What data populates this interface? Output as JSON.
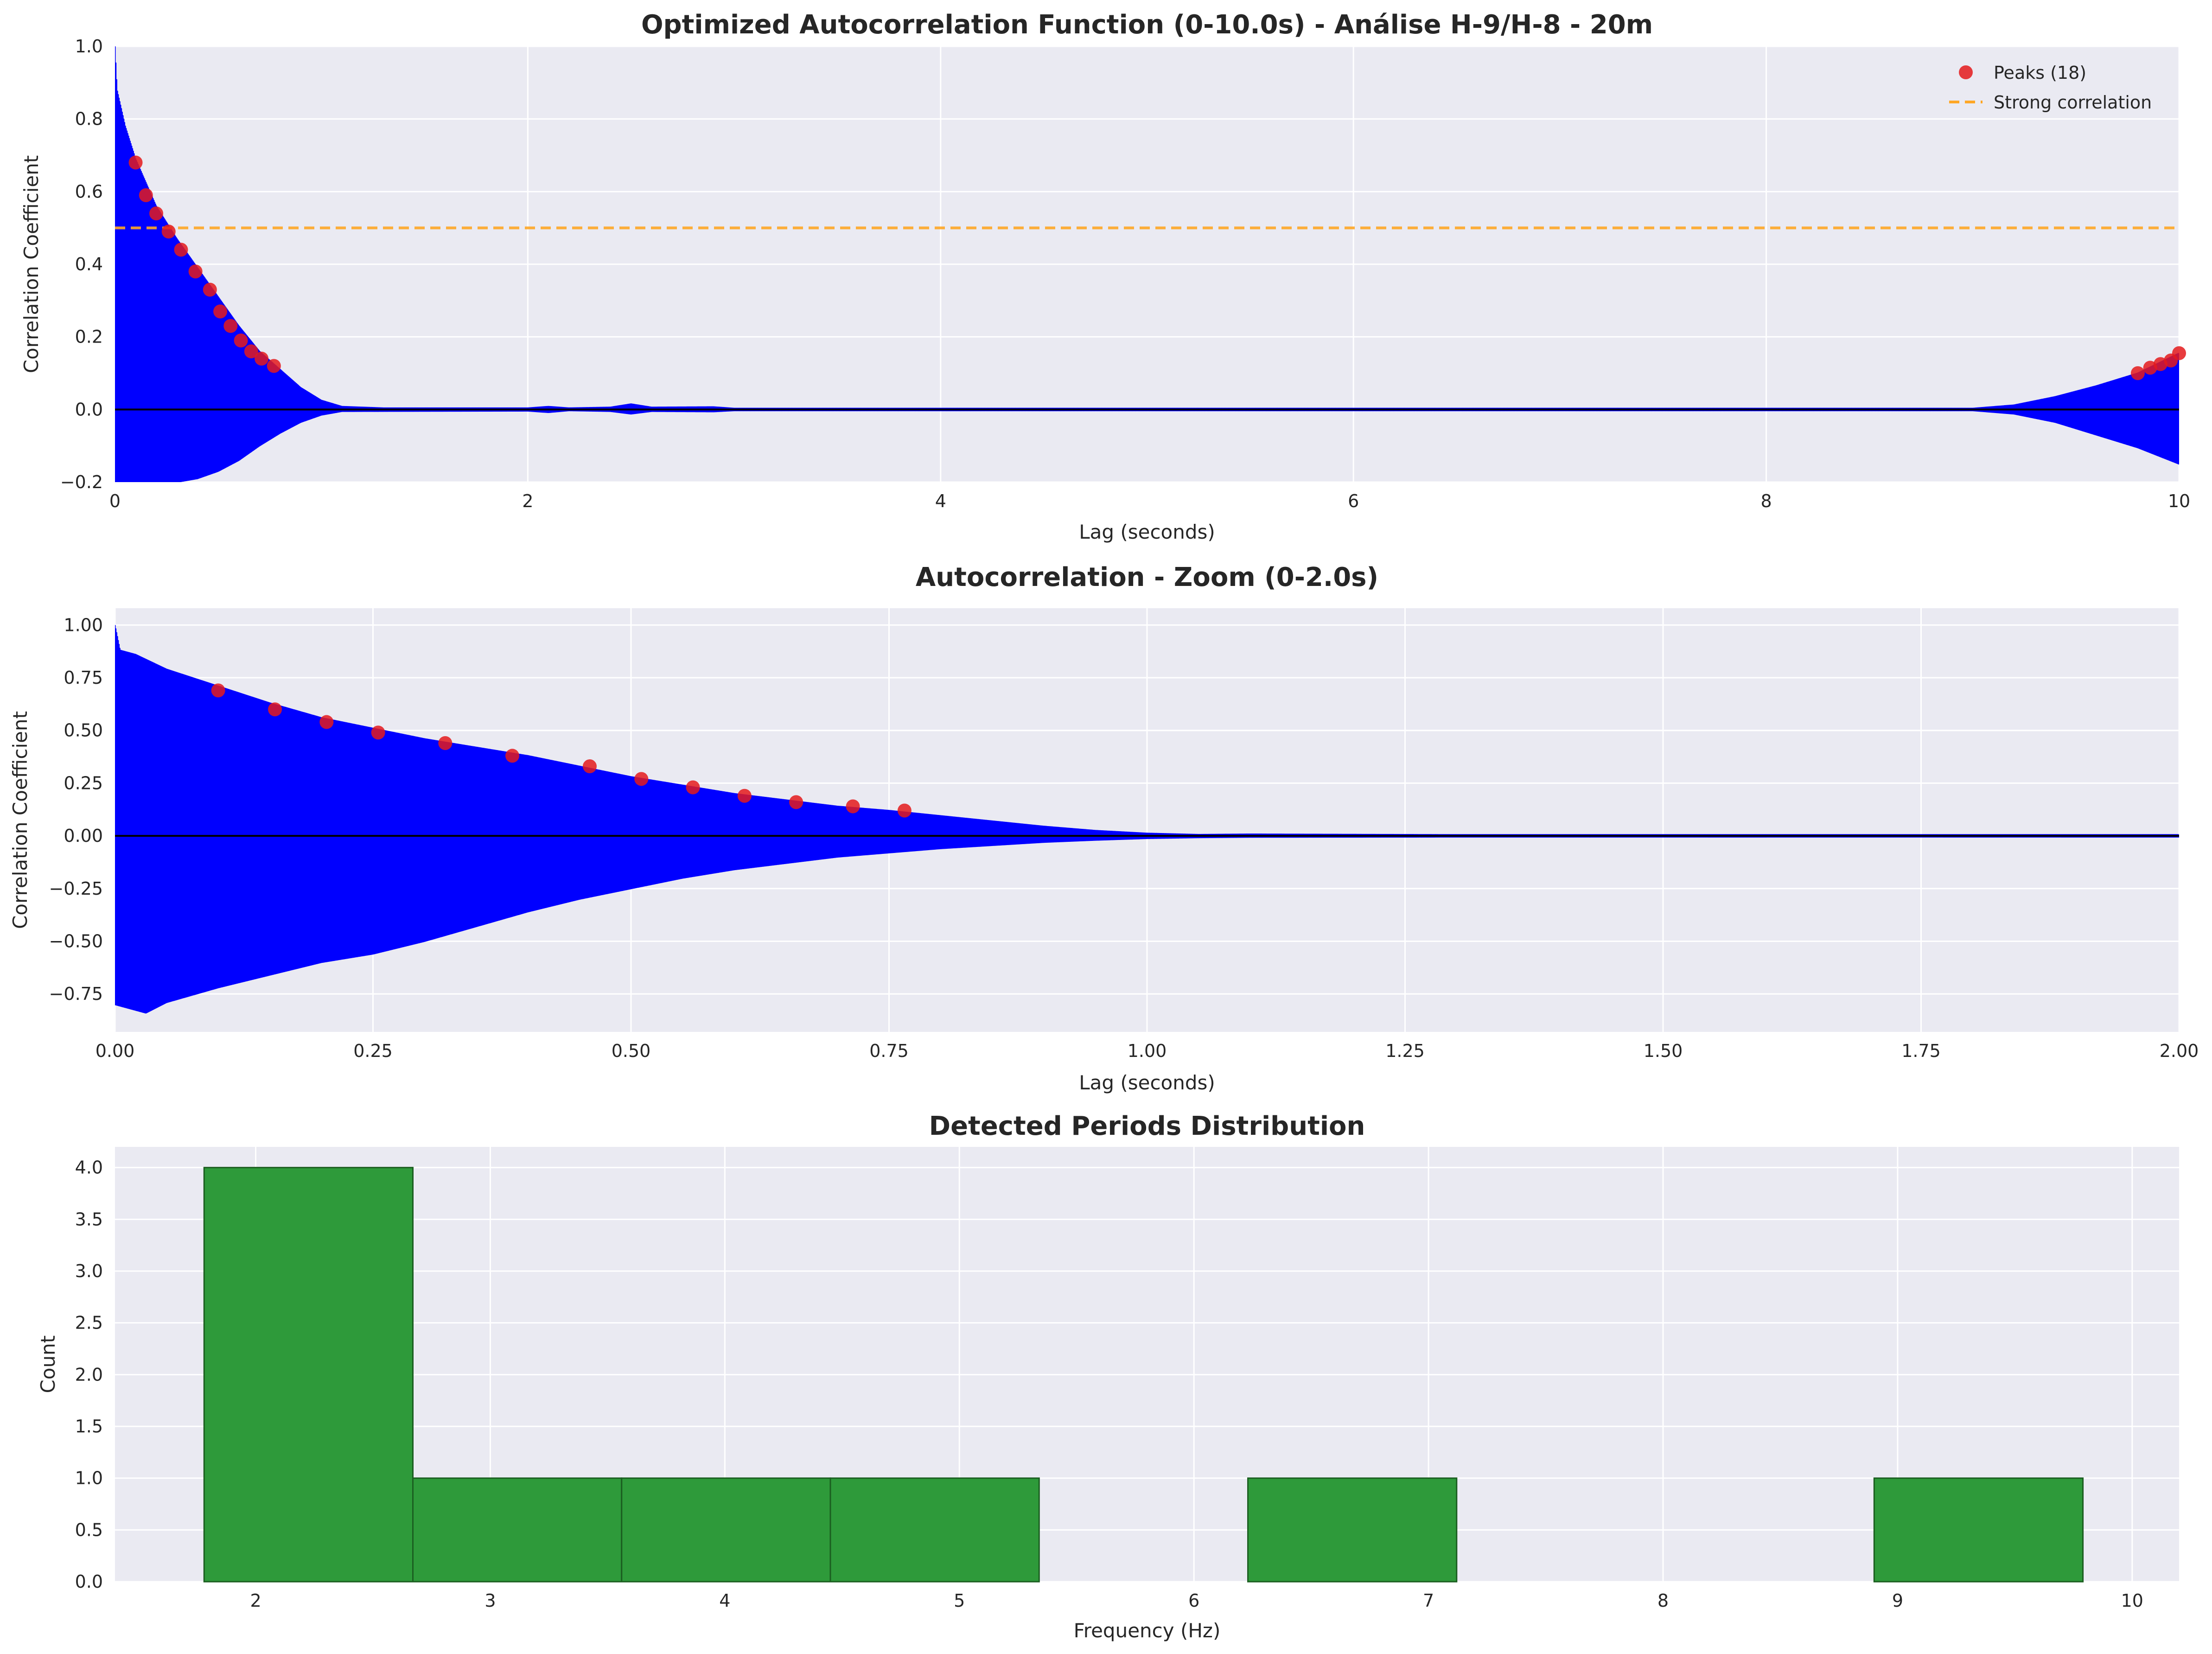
{
  "colors": {
    "background": "#eaeaf2",
    "grid": "#ffffff",
    "signal": "#0000ff",
    "peak": "#e41a1c",
    "threshold": "#ffa726",
    "zero_line": "#000000",
    "bar_fill": "#2e9a3a",
    "bar_edge": "#1b5e20"
  },
  "chart_data": [
    {
      "type": "line",
      "title": "Optimized Autocorrelation Function (0-10.0s) - Análise H-9/H-8 - 20m",
      "xlabel": "Lag (seconds)",
      "ylabel": "Correlation Coefficient",
      "xlim": [
        0,
        10
      ],
      "ylim": [
        -0.2,
        1.0
      ],
      "xticks": [
        0,
        2,
        4,
        6,
        8,
        10
      ],
      "xtick_labels": [
        "0",
        "2",
        "4",
        "6",
        "8",
        "10"
      ],
      "yticks": [
        -0.2,
        0.0,
        0.2,
        0.4,
        0.6,
        0.8,
        1.0
      ],
      "ytick_labels": [
        "−0.2",
        "0.0",
        "0.2",
        "0.4",
        "0.6",
        "0.8",
        "1.0"
      ],
      "grid": true,
      "legend": {
        "placement": "upper-right",
        "entries": [
          {
            "label": "Peaks (18)",
            "kind": "marker"
          },
          {
            "label": "Strong correlation",
            "kind": "dashed-line"
          }
        ]
      },
      "threshold": 0.5,
      "envelope": {
        "upper": [
          [
            0,
            1.0
          ],
          [
            0.01,
            0.88
          ],
          [
            0.05,
            0.78
          ],
          [
            0.1,
            0.69
          ],
          [
            0.2,
            0.56
          ],
          [
            0.3,
            0.47
          ],
          [
            0.4,
            0.39
          ],
          [
            0.5,
            0.31
          ],
          [
            0.6,
            0.23
          ],
          [
            0.7,
            0.16
          ],
          [
            0.8,
            0.11
          ],
          [
            0.9,
            0.06
          ],
          [
            1.0,
            0.025
          ],
          [
            1.1,
            0.008
          ],
          [
            1.3,
            0.004
          ],
          [
            2.0,
            0.004
          ],
          [
            2.1,
            0.008
          ],
          [
            2.2,
            0.004
          ],
          [
            2.4,
            0.006
          ],
          [
            2.5,
            0.015
          ],
          [
            2.6,
            0.006
          ],
          [
            2.9,
            0.007
          ],
          [
            3.0,
            0.003
          ],
          [
            5.0,
            0.003
          ],
          [
            9.0,
            0.003
          ],
          [
            9.2,
            0.012
          ],
          [
            9.4,
            0.035
          ],
          [
            9.6,
            0.065
          ],
          [
            9.8,
            0.1
          ],
          [
            10.0,
            0.155
          ]
        ],
        "lower": [
          [
            0,
            -0.2
          ],
          [
            0.05,
            -0.2
          ],
          [
            0.3,
            -0.2
          ],
          [
            0.4,
            -0.19
          ],
          [
            0.5,
            -0.17
          ],
          [
            0.6,
            -0.14
          ],
          [
            0.7,
            -0.1
          ],
          [
            0.8,
            -0.065
          ],
          [
            0.9,
            -0.035
          ],
          [
            1.0,
            -0.015
          ],
          [
            1.1,
            -0.005
          ],
          [
            2.0,
            -0.004
          ],
          [
            2.1,
            -0.008
          ],
          [
            2.2,
            -0.003
          ],
          [
            2.4,
            -0.005
          ],
          [
            2.5,
            -0.012
          ],
          [
            2.6,
            -0.005
          ],
          [
            2.9,
            -0.006
          ],
          [
            3.0,
            -0.003
          ],
          [
            9.0,
            -0.003
          ],
          [
            9.2,
            -0.012
          ],
          [
            9.4,
            -0.035
          ],
          [
            9.6,
            -0.07
          ],
          [
            9.8,
            -0.105
          ],
          [
            10.0,
            -0.15
          ]
        ]
      },
      "peaks": {
        "x": [
          0.1,
          0.15,
          0.2,
          0.26,
          0.32,
          0.39,
          0.46,
          0.51,
          0.56,
          0.61,
          0.66,
          0.71,
          0.77,
          9.8,
          9.86,
          9.91,
          9.96,
          10.0
        ],
        "y": [
          0.68,
          0.59,
          0.54,
          0.49,
          0.44,
          0.38,
          0.33,
          0.27,
          0.23,
          0.19,
          0.16,
          0.14,
          0.12,
          0.1,
          0.115,
          0.125,
          0.135,
          0.155
        ]
      }
    },
    {
      "type": "line",
      "title": "Autocorrelation - Zoom (0-2.0s)",
      "xlabel": "Lag (seconds)",
      "ylabel": "Correlation Coefficient",
      "xlim": [
        0,
        2.0
      ],
      "ylim": [
        -0.93,
        1.08
      ],
      "xticks": [
        0,
        0.25,
        0.5,
        0.75,
        1.0,
        1.25,
        1.5,
        1.75,
        2.0
      ],
      "xtick_labels": [
        "0.00",
        "0.25",
        "0.50",
        "0.75",
        "1.00",
        "1.25",
        "1.50",
        "1.75",
        "2.00"
      ],
      "yticks": [
        -0.75,
        -0.5,
        -0.25,
        0.0,
        0.25,
        0.5,
        0.75,
        1.0
      ],
      "ytick_labels": [
        "−0.75",
        "−0.50",
        "−0.25",
        "0.00",
        "0.25",
        "0.50",
        "0.75",
        "1.00"
      ],
      "grid": true,
      "envelope": {
        "upper": [
          [
            0,
            1.0
          ],
          [
            0.005,
            0.88
          ],
          [
            0.02,
            0.86
          ],
          [
            0.05,
            0.79
          ],
          [
            0.1,
            0.71
          ],
          [
            0.15,
            0.63
          ],
          [
            0.2,
            0.56
          ],
          [
            0.25,
            0.51
          ],
          [
            0.3,
            0.46
          ],
          [
            0.35,
            0.42
          ],
          [
            0.4,
            0.38
          ],
          [
            0.45,
            0.33
          ],
          [
            0.5,
            0.28
          ],
          [
            0.55,
            0.24
          ],
          [
            0.6,
            0.2
          ],
          [
            0.65,
            0.17
          ],
          [
            0.7,
            0.14
          ],
          [
            0.75,
            0.12
          ],
          [
            0.8,
            0.095
          ],
          [
            0.85,
            0.07
          ],
          [
            0.9,
            0.045
          ],
          [
            0.95,
            0.025
          ],
          [
            1.0,
            0.012
          ],
          [
            1.05,
            0.006
          ],
          [
            1.1,
            0.008
          ],
          [
            1.3,
            0.005
          ],
          [
            2.0,
            0.005
          ]
        ],
        "lower": [
          [
            0,
            -0.8
          ],
          [
            0.03,
            -0.84
          ],
          [
            0.05,
            -0.79
          ],
          [
            0.1,
            -0.72
          ],
          [
            0.15,
            -0.66
          ],
          [
            0.2,
            -0.6
          ],
          [
            0.25,
            -0.56
          ],
          [
            0.3,
            -0.5
          ],
          [
            0.35,
            -0.43
          ],
          [
            0.4,
            -0.36
          ],
          [
            0.45,
            -0.3
          ],
          [
            0.5,
            -0.25
          ],
          [
            0.55,
            -0.2
          ],
          [
            0.6,
            -0.16
          ],
          [
            0.65,
            -0.13
          ],
          [
            0.7,
            -0.1
          ],
          [
            0.75,
            -0.08
          ],
          [
            0.8,
            -0.06
          ],
          [
            0.85,
            -0.045
          ],
          [
            0.9,
            -0.03
          ],
          [
            0.95,
            -0.02
          ],
          [
            1.0,
            -0.012
          ],
          [
            1.05,
            -0.008
          ],
          [
            1.1,
            -0.006
          ],
          [
            1.3,
            -0.005
          ],
          [
            2.0,
            -0.005
          ]
        ]
      },
      "peaks": {
        "x": [
          0.1,
          0.155,
          0.205,
          0.255,
          0.32,
          0.385,
          0.46,
          0.51,
          0.56,
          0.61,
          0.66,
          0.715,
          0.765
        ],
        "y": [
          0.69,
          0.6,
          0.54,
          0.49,
          0.44,
          0.38,
          0.33,
          0.27,
          0.23,
          0.19,
          0.16,
          0.14,
          0.12
        ]
      }
    },
    {
      "type": "bar",
      "title": "Detected Periods Distribution",
      "xlabel": "Frequency (Hz)",
      "ylabel": "Count",
      "xlim": [
        1.4,
        10.2
      ],
      "ylim": [
        0,
        4.2
      ],
      "xticks": [
        2,
        3,
        4,
        5,
        6,
        7,
        8,
        9,
        10
      ],
      "xtick_labels": [
        "2",
        "3",
        "4",
        "5",
        "6",
        "7",
        "8",
        "9",
        "10"
      ],
      "yticks": [
        0,
        0.5,
        1.0,
        1.5,
        2.0,
        2.5,
        3.0,
        3.5,
        4.0
      ],
      "ytick_labels": [
        "0.0",
        "0.5",
        "1.0",
        "1.5",
        "2.0",
        "2.5",
        "3.0",
        "3.5",
        "4.0"
      ],
      "grid": true,
      "bins": [
        {
          "x0": 1.78,
          "x1": 2.67,
          "count": 4
        },
        {
          "x0": 2.67,
          "x1": 3.56,
          "count": 1
        },
        {
          "x0": 3.56,
          "x1": 4.45,
          "count": 1
        },
        {
          "x0": 4.45,
          "x1": 5.34,
          "count": 1
        },
        {
          "x0": 6.23,
          "x1": 7.12,
          "count": 1
        },
        {
          "x0": 8.9,
          "x1": 9.79,
          "count": 1
        }
      ]
    }
  ]
}
